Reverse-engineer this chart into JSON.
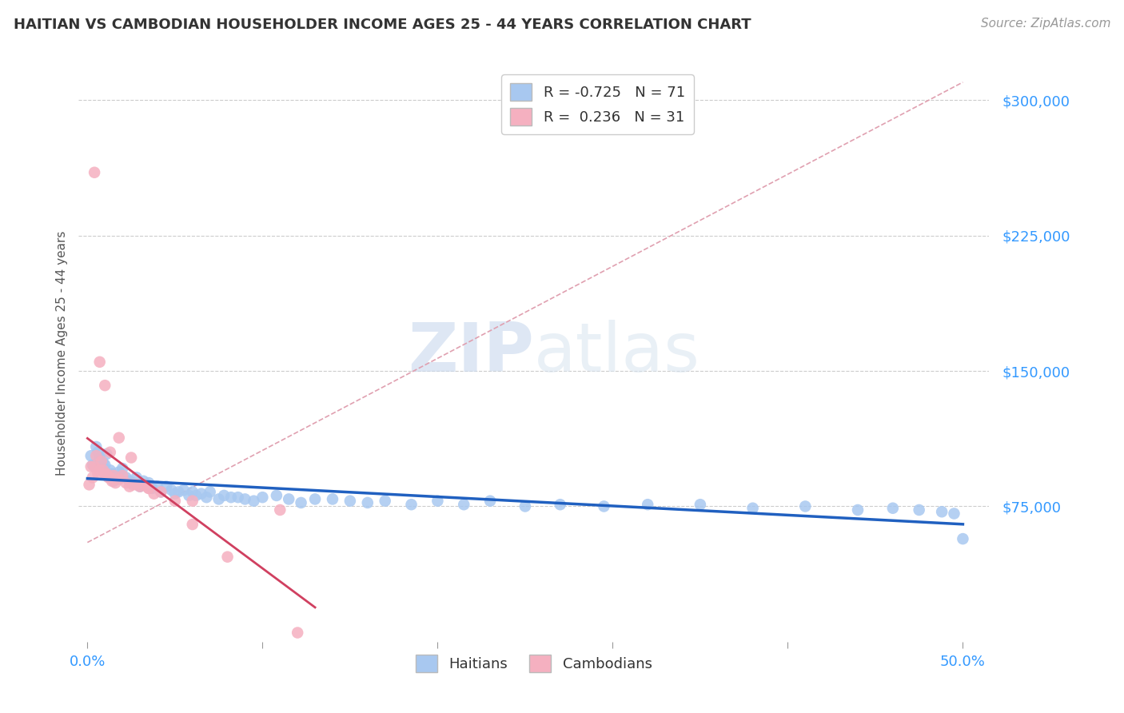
{
  "title": "HAITIAN VS CAMBODIAN HOUSEHOLDER INCOME AGES 25 - 44 YEARS CORRELATION CHART",
  "source": "Source: ZipAtlas.com",
  "ylabel": "Householder Income Ages 25 - 44 years",
  "y_tick_labels": [
    "$75,000",
    "$150,000",
    "$225,000",
    "$300,000"
  ],
  "y_tick_values": [
    75000,
    150000,
    225000,
    300000
  ],
  "legend_haitian": "Haitians",
  "legend_cambodian": "Cambodians",
  "R_haitian": -0.725,
  "N_haitian": 71,
  "R_cambodian": 0.236,
  "N_cambodian": 31,
  "haitian_color": "#a8c8f0",
  "cambodian_color": "#f5b0c0",
  "haitian_line_color": "#2060c0",
  "cambodian_line_color": "#d04060",
  "ref_line_color": "#e0a0b0",
  "background_color": "#ffffff",
  "watermark_zip": "ZIP",
  "watermark_atlas": "atlas",
  "haitian_x": [
    0.002,
    0.003,
    0.004,
    0.005,
    0.006,
    0.007,
    0.008,
    0.009,
    0.01,
    0.011,
    0.012,
    0.013,
    0.014,
    0.015,
    0.016,
    0.018,
    0.02,
    0.022,
    0.024,
    0.026,
    0.028,
    0.03,
    0.032,
    0.034,
    0.035,
    0.037,
    0.04,
    0.042,
    0.045,
    0.048,
    0.05,
    0.052,
    0.055,
    0.058,
    0.06,
    0.062,
    0.065,
    0.068,
    0.07,
    0.075,
    0.078,
    0.082,
    0.086,
    0.09,
    0.095,
    0.1,
    0.108,
    0.115,
    0.122,
    0.13,
    0.14,
    0.15,
    0.16,
    0.17,
    0.185,
    0.2,
    0.215,
    0.23,
    0.25,
    0.27,
    0.295,
    0.32,
    0.35,
    0.38,
    0.41,
    0.44,
    0.46,
    0.475,
    0.488,
    0.495,
    0.5
  ],
  "haitian_y": [
    103000,
    98000,
    97000,
    108000,
    105000,
    102000,
    97000,
    99000,
    98000,
    104000,
    92000,
    95000,
    93000,
    89000,
    91000,
    94000,
    96000,
    91000,
    89000,
    88000,
    91000,
    86000,
    89000,
    87000,
    88000,
    85000,
    86000,
    83000,
    86000,
    84000,
    82000,
    83000,
    84000,
    81000,
    83000,
    81000,
    82000,
    80000,
    83000,
    79000,
    81000,
    80000,
    80000,
    79000,
    78000,
    80000,
    81000,
    79000,
    77000,
    79000,
    79000,
    78000,
    77000,
    78000,
    76000,
    78000,
    76000,
    78000,
    75000,
    76000,
    75000,
    76000,
    76000,
    74000,
    75000,
    73000,
    74000,
    73000,
    72000,
    71000,
    57000
  ],
  "cambodian_x": [
    0.001,
    0.002,
    0.003,
    0.004,
    0.005,
    0.006,
    0.007,
    0.008,
    0.009,
    0.01,
    0.011,
    0.012,
    0.013,
    0.014,
    0.015,
    0.016,
    0.018,
    0.02,
    0.022,
    0.024,
    0.026,
    0.028,
    0.03,
    0.032,
    0.035,
    0.038,
    0.042,
    0.05,
    0.06,
    0.08,
    0.12
  ],
  "cambodian_y": [
    87000,
    97000,
    91000,
    97000,
    103000,
    93000,
    95000,
    100000,
    95000,
    93000,
    93000,
    91000,
    91000,
    89000,
    92000,
    88000,
    90000,
    92000,
    88000,
    86000,
    87000,
    87000,
    86000,
    87000,
    85000,
    82000,
    83000,
    78000,
    65000,
    47000,
    5000
  ],
  "cambodian_x_extra": [
    0.004,
    0.007,
    0.01,
    0.013,
    0.018,
    0.025,
    0.035,
    0.06,
    0.11
  ],
  "cambodian_y_extra": [
    260000,
    155000,
    142000,
    105000,
    113000,
    102000,
    85000,
    78000,
    73000
  ]
}
